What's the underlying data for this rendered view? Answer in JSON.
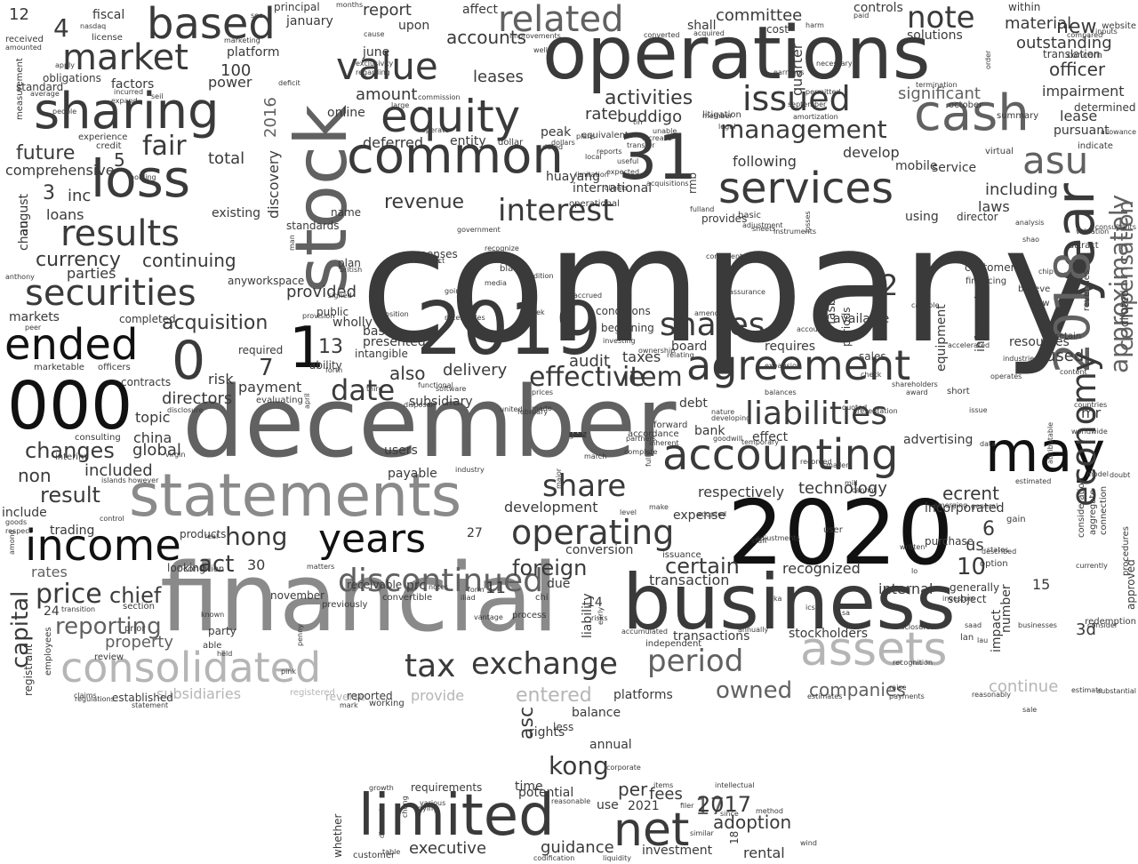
{
  "colors": {
    "background": "#ffffff",
    "black": "#111111",
    "dark": "#3a3a3a",
    "mid": "#616161",
    "gray": "#8a8a8a",
    "light": "#b5b5b5",
    "faint": "#d2d2d2"
  },
  "words": [
    "company",
    "december",
    "financial",
    "operations",
    "stock",
    "2020",
    "statements",
    "business",
    "2019",
    "consolidated",
    "loss",
    "sharing",
    "common",
    "31",
    "000",
    "limited",
    "income",
    "assets",
    "agreement",
    "accounting",
    "services",
    "year",
    "2018",
    "may",
    "equity",
    "value",
    "cash",
    "based",
    "market",
    "securities",
    "ended",
    "results",
    "issued",
    "management",
    "exchange",
    "tax",
    "period",
    "net",
    "years",
    "operating",
    "shares",
    "related",
    "note",
    "asu",
    "approximately",
    "compensation",
    "economy",
    "liabilities",
    "share",
    "effective",
    "date",
    "interest",
    "discontinued",
    "kong",
    "price",
    "reporting",
    "fair",
    "changes",
    "certain",
    "item",
    "hong",
    "act",
    "chief",
    "result",
    "1",
    "0",
    "2",
    "7",
    "13",
    "4",
    "5",
    "3",
    "6",
    "10",
    "11",
    "14",
    "15",
    "17",
    "24",
    "27",
    "30",
    "12",
    "18",
    "100",
    "2016",
    "2017",
    "2021",
    "new",
    "revenue",
    "future",
    "inc",
    "currency",
    "continuing",
    "acquisition",
    "provided",
    "markets",
    "parties",
    "loans",
    "directors",
    "topic",
    "china",
    "global",
    "included",
    "non",
    "include",
    "trading",
    "rates",
    "capital",
    "property",
    "owned",
    "companies",
    "continue",
    "entered",
    "subsidiaries",
    "provide",
    "platforms",
    "balance",
    "annual",
    "per",
    "fees",
    "adoption",
    "guidance",
    "executive",
    "rental",
    "investment",
    "potential",
    "requirements",
    "time",
    "use",
    "whether",
    "customer",
    "various",
    "growth",
    "intellectual",
    "since",
    "method",
    "liability",
    "asc",
    "rights",
    "less",
    "foreign",
    "prc",
    "due",
    "conversion",
    "transaction",
    "development",
    "operational",
    "activities",
    "buddigo",
    "rate",
    "impairment",
    "outstanding",
    "officer",
    "material",
    "translation",
    "lease",
    "pursuant",
    "accounts",
    "leases",
    "report",
    "upon",
    "committee",
    "cost",
    "controls",
    "within",
    "affect",
    "fiscal",
    "nasdaq",
    "license",
    "principal",
    "months",
    "january",
    "platform",
    "power",
    "factors",
    "obligations",
    "standard",
    "online",
    "amount",
    "june",
    "deferred",
    "entity",
    "peak",
    "dollars",
    "huayang",
    "international",
    "develop",
    "mobile",
    "service",
    "including",
    "laws",
    "using",
    "director",
    "following",
    "rmb",
    "provides",
    "basic",
    "customers",
    "financing",
    "revenues",
    "diluted",
    "resources",
    "available",
    "sales",
    "periods",
    "fasb",
    "requires",
    "board",
    "taxes",
    "audit",
    "also",
    "delivery",
    "ability",
    "payment",
    "subsidiary",
    "evaluating",
    "disclosure",
    "users",
    "payable",
    "expenses",
    "entities",
    "contract",
    "conditions",
    "beginning",
    "hk",
    "equivalents",
    "dollar",
    "expected",
    "significant",
    "mr",
    "information",
    "equipment",
    "used",
    "advertising",
    "short",
    "incorporated",
    "ecrent",
    "us",
    "gain",
    "purchase",
    "option",
    "internal",
    "subject",
    "generally",
    "3d",
    "impact",
    "number",
    "recognized",
    "stockholders",
    "transactions",
    "independent",
    "accumulated",
    "technology",
    "respectively",
    "expense",
    "adopted",
    "issuance",
    "bank",
    "effect",
    "debt",
    "make",
    "chan",
    "august",
    "anthony",
    "existing",
    "total",
    "discovery",
    "comprehensive",
    "experience",
    "credit",
    "measurement",
    "received",
    "amounted",
    "average",
    "people",
    "standards",
    "name",
    "plan",
    "british",
    "anyworkspace",
    "public",
    "wholly",
    "required",
    "presented",
    "basis",
    "intangible",
    "risk",
    "contracts",
    "marketable",
    "officers",
    "completed",
    "peer",
    "consulting",
    "interim",
    "goods",
    "respect",
    "among",
    "review",
    "prior",
    "section",
    "registrant",
    "employees",
    "transition",
    "virgin",
    "however",
    "islands",
    "control",
    "products",
    "looking",
    "real",
    "condition",
    "able",
    "held",
    "party",
    "known",
    "pink",
    "penny",
    "november",
    "previously",
    "matters",
    "receivable",
    "convertible",
    "notes",
    "form",
    "iliad",
    "vantage",
    "process",
    "chi",
    "established",
    "claims",
    "registered",
    "reverse",
    "reported",
    "working",
    "regulations",
    "mark",
    "statement",
    "codification",
    "liquidity",
    "dying",
    "reasonable",
    "similar",
    "filer",
    "items",
    "wind",
    "level",
    "major",
    "staff",
    "general",
    "cannot",
    "consideration",
    "aggregate",
    "connection",
    "currently",
    "approved",
    "redemption",
    "procedures",
    "states",
    "industry",
    "fully",
    "accordance",
    "forward",
    "partners",
    "march",
    "complete",
    "shall",
    "acquired",
    "concern",
    "website",
    "inputs",
    "compared",
    "determined",
    "allowance",
    "october",
    "summary",
    "indicate",
    "earnings",
    "necessary",
    "permitted",
    "quarter",
    "amortization",
    "litigation",
    "member",
    "legal",
    "virtual",
    "acquisitions",
    "tin",
    "unable",
    "retain",
    "data",
    "quoted",
    "presentation",
    "accounted",
    "shareholders",
    "estimated",
    "content",
    "countries",
    "issue",
    "operates",
    "industries",
    "flow",
    "believe",
    "chip",
    "attract",
    "valuation",
    "analysis",
    "shao",
    "consultants",
    "order",
    "paid",
    "solutions",
    "harm",
    "black",
    "app",
    "government",
    "recognize",
    "co",
    "media",
    "going",
    "addition",
    "consistent",
    "sheets",
    "adjustment",
    "instruments",
    "losses",
    "man",
    "signed",
    "provision",
    "position",
    "investing",
    "ownership",
    "relating",
    "amended",
    "balances",
    "award",
    "check",
    "adjustments",
    "user",
    "lo",
    "described",
    "written",
    "plans",
    "transfer",
    "reports",
    "clients",
    "fulland",
    "increase",
    "local",
    "useful",
    "improvements",
    "well",
    "cause",
    "exclusivity",
    "regarding",
    "incurred",
    "apply",
    "seil",
    "expand",
    "holding",
    "deficit",
    "converted",
    "september",
    "sec",
    "marketing",
    "termination",
    "commission",
    "large",
    "operate",
    "functional",
    "software",
    "disposal",
    "forth",
    "april",
    "risks",
    "early",
    "expansion",
    "temporary",
    "recorded",
    "businesses",
    "consider",
    "reasonably",
    "substantial",
    "estimate",
    "raise",
    "sale",
    "united",
    "made",
    "third",
    "worldwide",
    "model",
    "doubt",
    "attributable",
    "chung",
    "discount",
    "table",
    "corporate",
    "developing",
    "february",
    "dated",
    "receivables",
    "investors",
    "disclosures",
    "recognition",
    "estimates",
    "payments",
    "assurance",
    "goodwill",
    "prices",
    "seek",
    "accrued",
    "limitation",
    "inherent",
    "capable",
    "accelerated",
    "nature",
    "smaller",
    "emerging",
    "annually",
    "mill",
    "ka",
    "ics",
    "sa",
    "lan",
    "saad",
    "lau",
    "lmfa",
    "ads",
    "ch",
    "ke",
    "xi",
    "09",
    "02",
    "22",
    "50",
    "8",
    "9",
    "19",
    "20",
    "25",
    "26",
    "28",
    "40",
    "60",
    "120",
    "140",
    "200",
    "250",
    "532",
    "718",
    "740",
    "750",
    "788",
    "843",
    "844",
    "951",
    "417",
    "2007",
    "1301",
    "2012",
    "5",
    "1",
    "2",
    "4",
    "7",
    "8",
    "19",
    "20",
    "25",
    "26",
    "28",
    "k",
    "f",
    "u",
    "rmb",
    "seil",
    "ka",
    "lo",
    "ec",
    "qs",
    "gss"
  ]
}
